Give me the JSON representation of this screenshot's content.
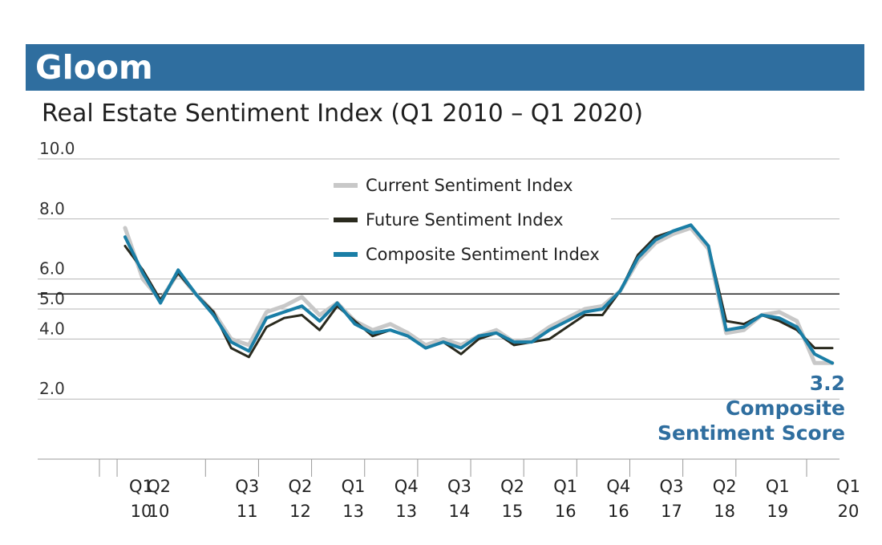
{
  "banner": {
    "title": "Gloom"
  },
  "chart_data": {
    "type": "line",
    "title": "Real Estate Sentiment Index (Q1 2010 – Q1 2020)",
    "xlabel": "",
    "ylabel": "",
    "ylim": [
      0,
      10
    ],
    "yticks": [
      {
        "value": 10,
        "label": "10.0"
      },
      {
        "value": 8,
        "label": "8.0"
      },
      {
        "value": 6,
        "label": "6.0"
      },
      {
        "value": 5,
        "label": "5.0"
      },
      {
        "value": 4,
        "label": "4.0"
      },
      {
        "value": 2,
        "label": "2.0"
      }
    ],
    "reference_line": 5.5,
    "x_tick_labels": [
      {
        "index": 0,
        "line1": "Q1",
        "line2": "10"
      },
      {
        "index": 1,
        "line1": "Q2",
        "line2": "10"
      },
      {
        "index": 6,
        "line1": "Q3",
        "line2": "11"
      },
      {
        "index": 9,
        "line1": "Q2",
        "line2": "12"
      },
      {
        "index": 12,
        "line1": "Q1",
        "line2": "13"
      },
      {
        "index": 15,
        "line1": "Q4",
        "line2": "13"
      },
      {
        "index": 18,
        "line1": "Q3",
        "line2": "14"
      },
      {
        "index": 21,
        "line1": "Q2",
        "line2": "15"
      },
      {
        "index": 24,
        "line1": "Q1",
        "line2": "16"
      },
      {
        "index": 27,
        "line1": "Q4",
        "line2": "16"
      },
      {
        "index": 30,
        "line1": "Q3",
        "line2": "17"
      },
      {
        "index": 33,
        "line1": "Q2",
        "line2": "18"
      },
      {
        "index": 36,
        "line1": "Q1",
        "line2": "19"
      },
      {
        "index": 40,
        "line1": "Q1",
        "line2": "20"
      }
    ],
    "legend_position": "top-center",
    "grid": true,
    "series": [
      {
        "name": "Current Sentiment Index",
        "color": "#c8c8c8",
        "values": [
          7.7,
          6.0,
          5.3,
          6.2,
          5.5,
          4.9,
          4.0,
          3.8,
          4.9,
          5.1,
          5.4,
          4.8,
          5.2,
          4.6,
          4.3,
          4.5,
          4.2,
          3.8,
          4.0,
          3.8,
          4.1,
          4.3,
          3.9,
          4.0,
          4.4,
          4.7,
          5.0,
          5.1,
          5.6,
          6.6,
          7.2,
          7.5,
          7.7,
          7.0,
          4.2,
          4.3,
          4.8,
          4.9,
          4.6,
          3.2,
          3.2
        ]
      },
      {
        "name": "Future Sentiment Index",
        "color": "#2a2a1e",
        "values": [
          7.1,
          6.3,
          5.3,
          6.2,
          5.5,
          4.9,
          3.7,
          3.4,
          4.4,
          4.7,
          4.8,
          4.3,
          5.1,
          4.6,
          4.1,
          4.3,
          4.1,
          3.7,
          3.9,
          3.5,
          4.0,
          4.2,
          3.8,
          3.9,
          4.0,
          4.4,
          4.8,
          4.8,
          5.6,
          6.8,
          7.4,
          7.6,
          7.8,
          7.1,
          4.6,
          4.5,
          4.8,
          4.6,
          4.3,
          3.7,
          3.7
        ]
      },
      {
        "name": "Composite Sentiment Index",
        "color": "#1a7ea6",
        "values": [
          7.4,
          6.2,
          5.2,
          6.3,
          5.5,
          4.8,
          3.9,
          3.6,
          4.7,
          4.9,
          5.1,
          4.6,
          5.2,
          4.5,
          4.2,
          4.3,
          4.1,
          3.7,
          3.9,
          3.7,
          4.1,
          4.2,
          3.9,
          3.9,
          4.3,
          4.6,
          4.9,
          5.0,
          5.6,
          6.7,
          7.3,
          7.6,
          7.8,
          7.1,
          4.3,
          4.4,
          4.8,
          4.7,
          4.4,
          3.5,
          3.2
        ]
      }
    ],
    "annotation": {
      "value": "3.2",
      "line1": "Composite",
      "line2": "Sentiment Score"
    }
  }
}
